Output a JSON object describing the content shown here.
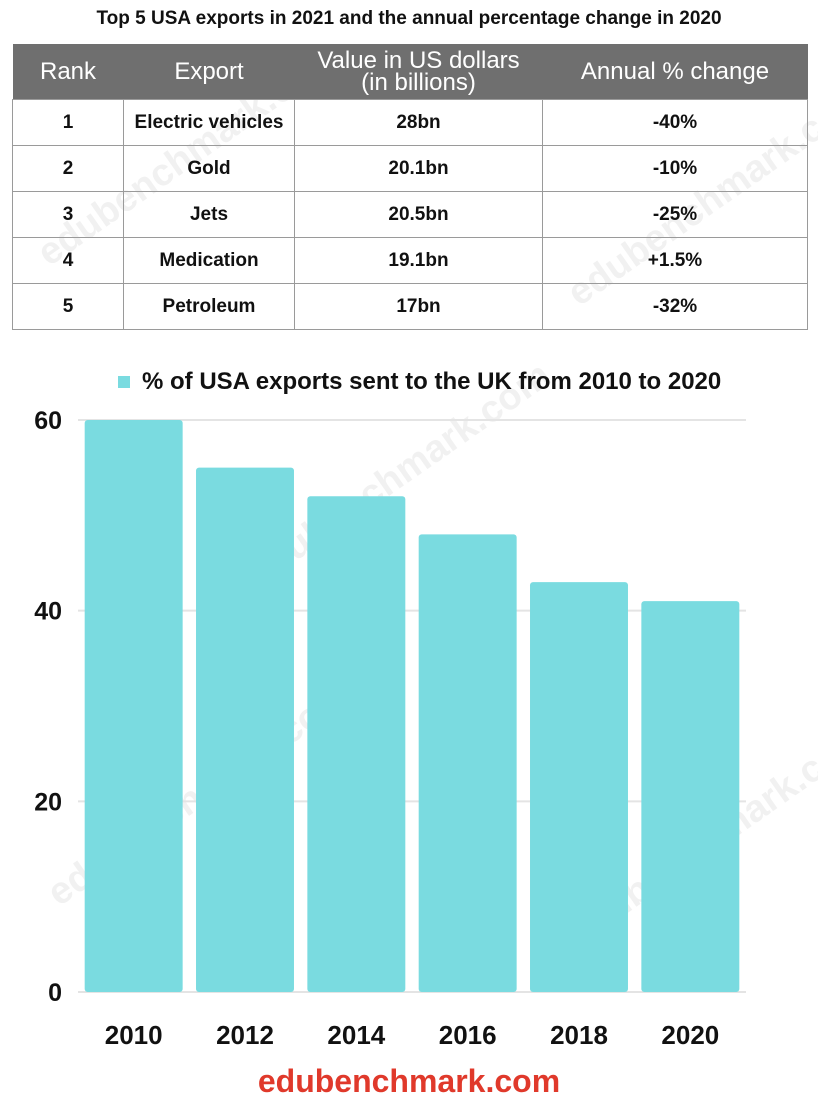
{
  "table": {
    "title": "Top 5 USA exports in 2021 and the annual percentage change in 2020",
    "headers": {
      "rank": "Rank",
      "export": "Export",
      "value_line1": "Value in US dollars",
      "value_line2": "(in billions)",
      "change": "Annual % change"
    },
    "rows": [
      {
        "rank": "1",
        "export": "Electric vehicles",
        "value": "28bn",
        "change": "-40%"
      },
      {
        "rank": "2",
        "export": "Gold",
        "value": "20.1bn",
        "change": "-10%"
      },
      {
        "rank": "3",
        "export": "Jets",
        "value": "20.5bn",
        "change": "-25%"
      },
      {
        "rank": "4",
        "export": "Medication",
        "value": "19.1bn",
        "change": "+1.5%"
      },
      {
        "rank": "5",
        "export": "Petroleum",
        "value": "17bn",
        "change": "-32%"
      }
    ]
  },
  "chart_data": {
    "type": "bar",
    "title": "",
    "xlabel": "",
    "ylabel": "",
    "categories": [
      "2010",
      "2012",
      "2014",
      "2016",
      "2018",
      "2020"
    ],
    "series": [
      {
        "name": "% of USA exports sent to the UK from 2010 to 2020",
        "values": [
          60,
          55,
          52,
          48,
          43,
          41
        ]
      }
    ],
    "ylim": [
      0,
      60
    ],
    "yticks": [
      "0",
      "20",
      "40",
      "60"
    ],
    "grid": true,
    "legend": "top-center",
    "bar_color": "#7adbe0"
  },
  "footer": {
    "brand": "edubenchmark.com",
    "brand_color": "#e0392b"
  }
}
